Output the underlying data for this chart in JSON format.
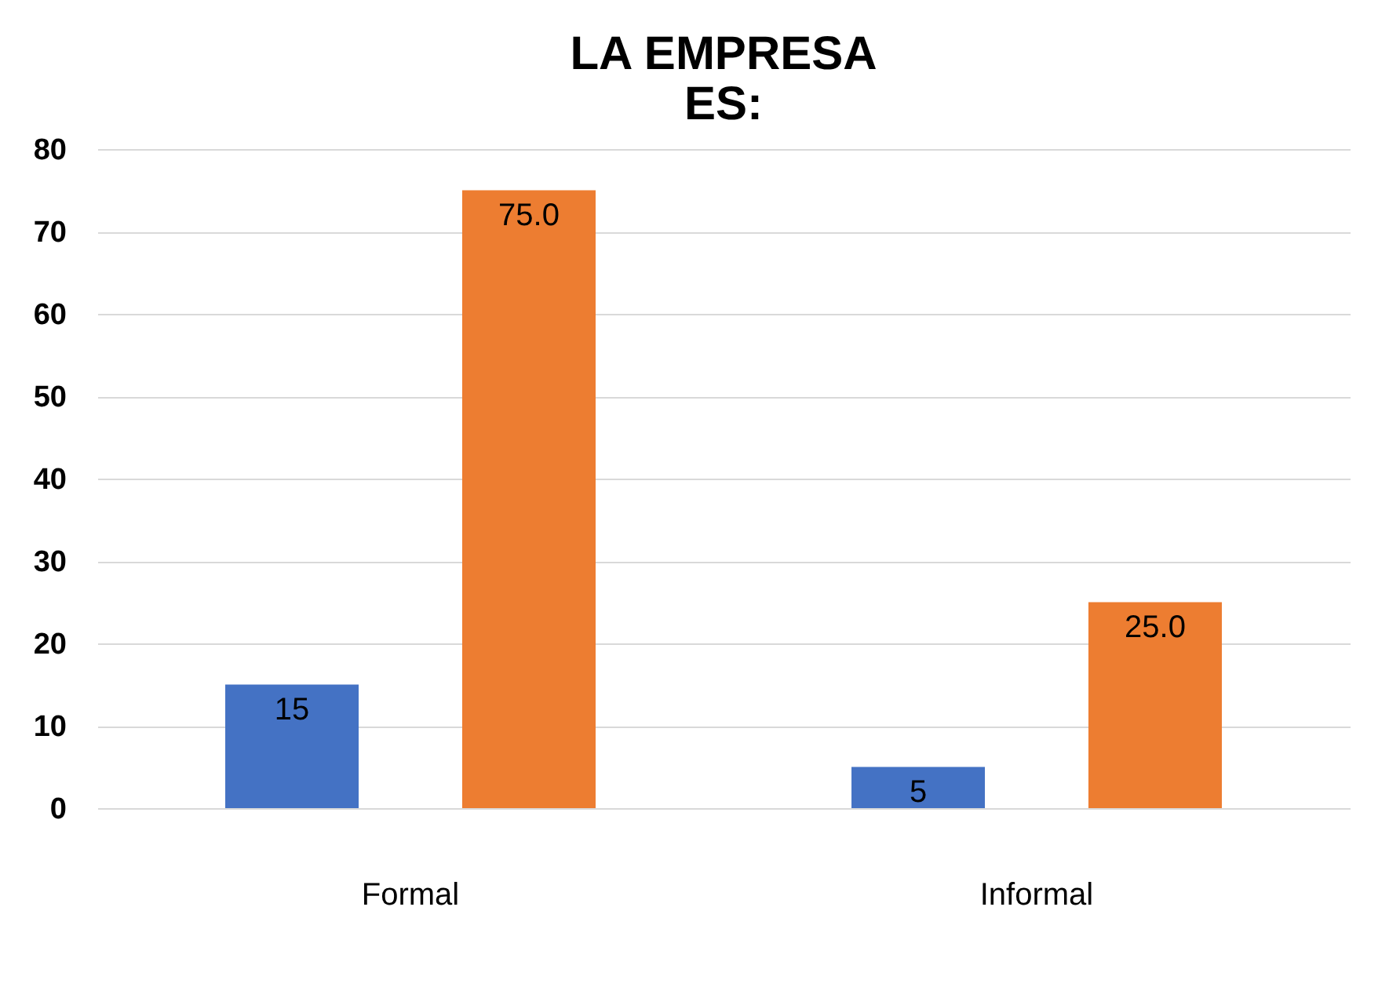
{
  "chart_data": {
    "type": "bar",
    "title": [
      "LA EMPRESA",
      "ES:"
    ],
    "categories": [
      "Formal",
      "Informal"
    ],
    "series": [
      {
        "color": "#4472c4",
        "values": [
          15,
          5
        ],
        "value_labels": [
          "15",
          "5"
        ]
      },
      {
        "color": "#ed7d31",
        "values": [
          75,
          25
        ],
        "value_labels": [
          "75.0",
          "25.0"
        ]
      }
    ],
    "ylim": [
      0,
      80
    ],
    "yticks": [
      0,
      10,
      20,
      30,
      40,
      50,
      60,
      70,
      80
    ],
    "grid": "y"
  }
}
